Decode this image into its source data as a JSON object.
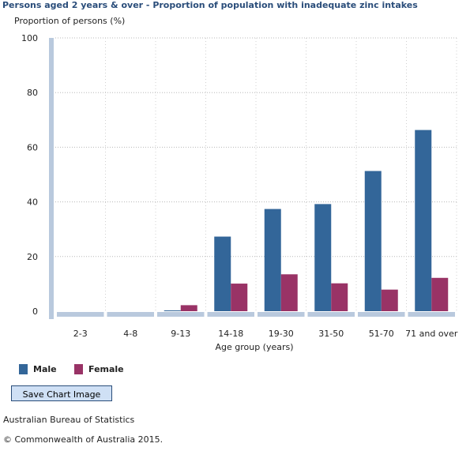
{
  "chart_data": {
    "type": "bar",
    "title": "Persons aged 2 years & over - Proportion of population with inadequate zinc intakes",
    "ylabel": "Proportion of persons (%)",
    "xlabel": "Age group (years)",
    "categories": [
      "2-3",
      "4-8",
      "9-13",
      "14-18",
      "19-30",
      "31-50",
      "51-70",
      "71 and over"
    ],
    "series": [
      {
        "name": "Male",
        "color": "#336699",
        "values": [
          0,
          0,
          0.3,
          27.3,
          37.4,
          39.2,
          51.3,
          66.3
        ]
      },
      {
        "name": "Female",
        "color": "#993366",
        "values": [
          0,
          0,
          2.2,
          10.1,
          13.5,
          10.2,
          7.9,
          12.2
        ]
      }
    ],
    "ylim": [
      0,
      100
    ],
    "yticks": [
      0,
      20,
      40,
      60,
      80,
      100
    ],
    "grid": true,
    "legend_position": "bottom-left"
  },
  "footer": {
    "save_button_label": "Save Chart Image",
    "source": "Australian Bureau of Statistics",
    "copyright": "© Commonwealth of Australia 2015."
  }
}
